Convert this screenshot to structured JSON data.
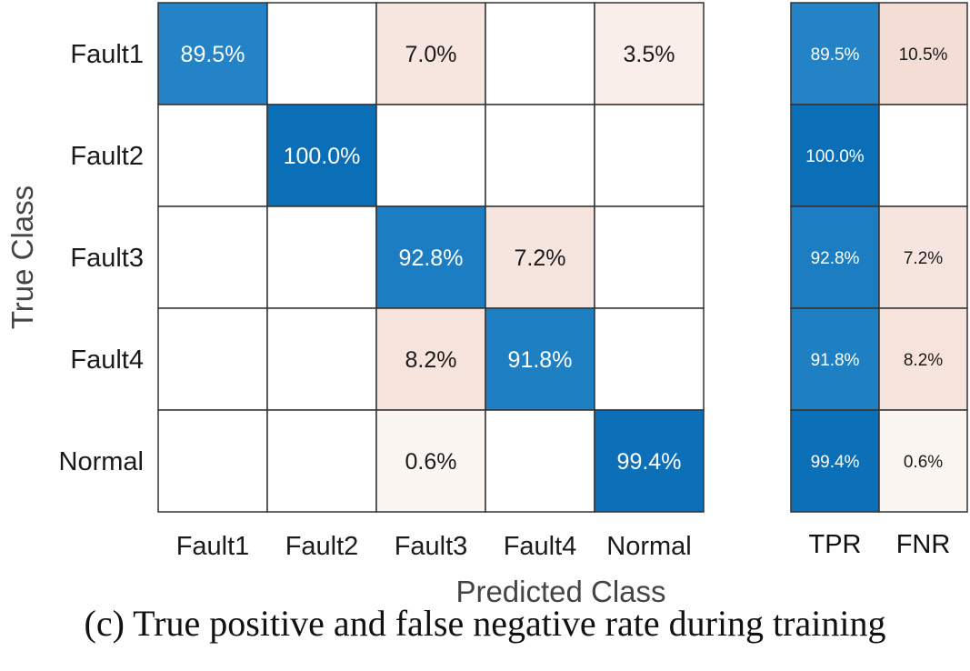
{
  "chart_data": [
    {
      "type": "heatmap",
      "xlabel": "Predicted Class",
      "ylabel": "True Class",
      "row_labels": [
        "Fault1",
        "Fault2",
        "Fault3",
        "Fault4",
        "Normal"
      ],
      "col_labels": [
        "Fault1",
        "Fault2",
        "Fault3",
        "Fault4",
        "Normal"
      ],
      "values": [
        [
          89.5,
          null,
          7.0,
          null,
          3.5
        ],
        [
          null,
          100.0,
          null,
          null,
          null
        ],
        [
          null,
          null,
          92.8,
          7.2,
          null
        ],
        [
          null,
          null,
          8.2,
          91.8,
          null
        ],
        [
          null,
          null,
          0.6,
          null,
          99.4
        ]
      ]
    },
    {
      "type": "heatmap",
      "col_labels": [
        "TPR",
        "FNR"
      ],
      "row_labels": [
        "Fault1",
        "Fault2",
        "Fault3",
        "Fault4",
        "Normal"
      ],
      "values": [
        [
          89.5,
          10.5
        ],
        [
          100.0,
          null
        ],
        [
          92.8,
          7.2
        ],
        [
          91.8,
          8.2
        ],
        [
          99.4,
          0.6
        ]
      ]
    }
  ],
  "caption": "(c)  True positive and false negative rate during training",
  "colors": {
    "diagonal_dark": "#0b6fb8",
    "diagonal_light": "#2f8ccc",
    "offdiag_dark": "#f3dcd2",
    "offdiag_light": "#fdf7f5",
    "empty": "#ffffff",
    "grid": "#333333",
    "text_dark": "#1a1a1a",
    "text_light": "#ffffff"
  }
}
